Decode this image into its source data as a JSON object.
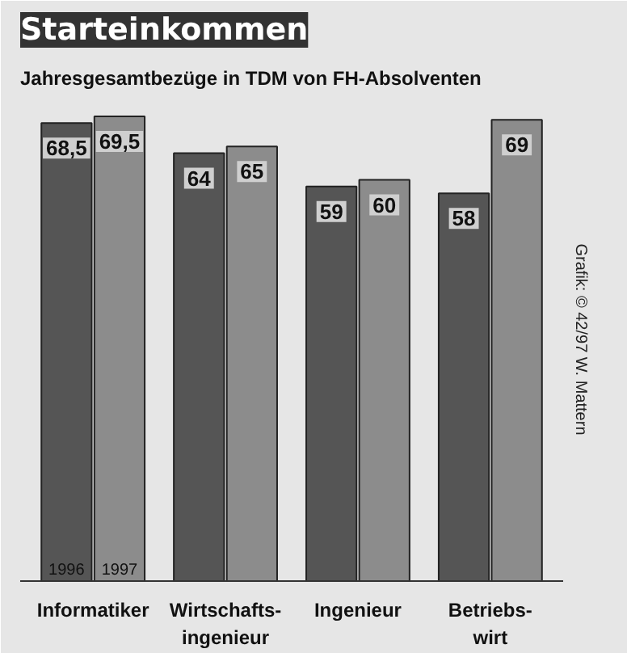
{
  "chart_data": {
    "type": "bar",
    "title": "Starteinkommen",
    "subtitle": "Jahresgesamtbezüge in TDM von FH-Absolventen",
    "categories": [
      "Informatiker",
      "Wirtschafts-\ningenieur",
      "Ingenieur",
      "Betriebs-\nwirt"
    ],
    "series": [
      {
        "name": "1996",
        "color": "#555555",
        "values": [
          68.5,
          64,
          59,
          58
        ],
        "value_labels": [
          "68,5",
          "64",
          "59",
          "58"
        ]
      },
      {
        "name": "1997",
        "color": "#8c8c8c",
        "values": [
          69.5,
          65,
          60,
          69
        ],
        "value_labels": [
          "69,5",
          "65",
          "60",
          "69"
        ]
      }
    ],
    "annotations": [
      "Grafik: © 42/97 W. Mattern"
    ]
  }
}
